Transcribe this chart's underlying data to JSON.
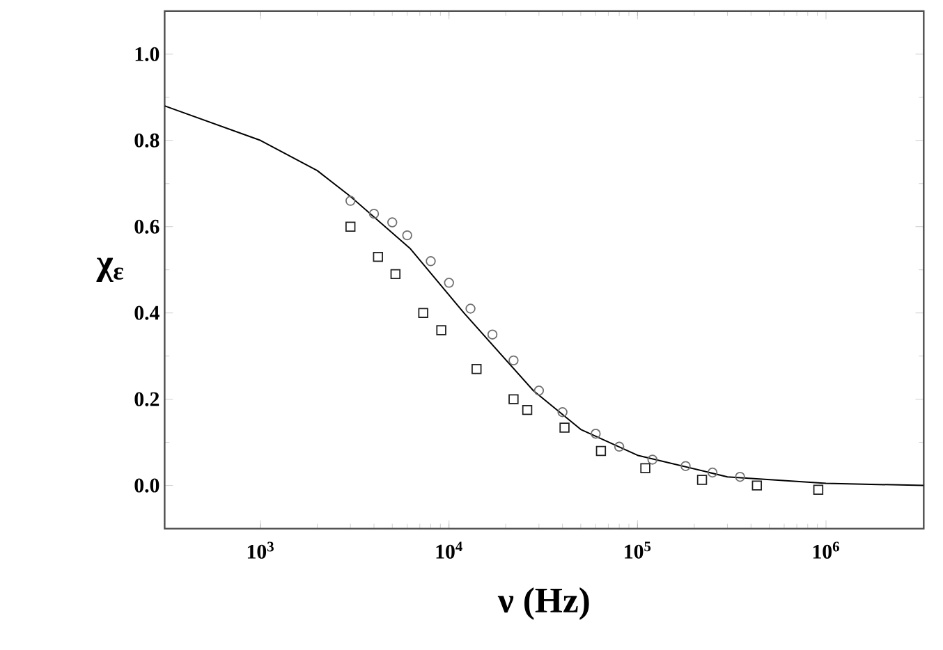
{
  "chart_data": {
    "type": "scatter",
    "xlabel": "ν (Hz)",
    "ylabel": "χ$_{ε}$",
    "log": "x",
    "xlim": [
      310,
      3300000
    ],
    "ylim": [
      -0.1,
      1.1
    ],
    "xticks": [
      {
        "value": 1000,
        "label": "10$^{3}$"
      },
      {
        "value": 10000,
        "label": "10$^{4}$"
      },
      {
        "value": 100000,
        "label": "10$^{5}$"
      },
      {
        "value": 1000000,
        "label": "10$^{6}$"
      }
    ],
    "yticks": [
      {
        "value": 0,
        "label": "0.0"
      },
      {
        "value": 0.2,
        "label": "0.2"
      },
      {
        "value": 0.4,
        "label": "0.4"
      },
      {
        "value": 0.6,
        "label": "0.6"
      },
      {
        "value": 0.8,
        "label": "0.8"
      },
      {
        "value": 1.0,
        "label": "1.0"
      }
    ],
    "grid": false,
    "series": [
      {
        "type": "line",
        "color": "#000000",
        "marker": "none",
        "line_style": "solid",
        "x": [
          310,
          1000,
          2000,
          3000,
          6200,
          12000,
          28000,
          50000,
          100000,
          300000,
          1000000,
          3300000
        ],
        "values": [
          0.88,
          0.8,
          0.73,
          0.67,
          0.55,
          0.4,
          0.22,
          0.13,
          0.07,
          0.02,
          0.005,
          0.0
        ]
      },
      {
        "color": "#707070",
        "marker": "circle",
        "x": [
          3000,
          4000,
          5000,
          6000,
          8000,
          10000,
          13000,
          17000,
          22000,
          30000,
          40000,
          60000,
          80000,
          120000,
          180000,
          250000,
          350000
        ],
        "values": [
          0.66,
          0.63,
          0.61,
          0.58,
          0.52,
          0.47,
          0.41,
          0.35,
          0.29,
          0.22,
          0.17,
          0.12,
          0.09,
          0.06,
          0.045,
          0.03,
          0.02
        ]
      },
      {
        "color": "#202020",
        "marker": "square",
        "x": [
          3000,
          4200,
          5200,
          7300,
          9100,
          14000,
          22000,
          26000,
          41000,
          64000,
          110000,
          220000,
          430000,
          910000
        ],
        "values": [
          0.6,
          0.53,
          0.49,
          0.4,
          0.36,
          0.27,
          0.2,
          0.175,
          0.134,
          0.08,
          0.04,
          0.013,
          0.0,
          -0.01
        ]
      }
    ]
  }
}
